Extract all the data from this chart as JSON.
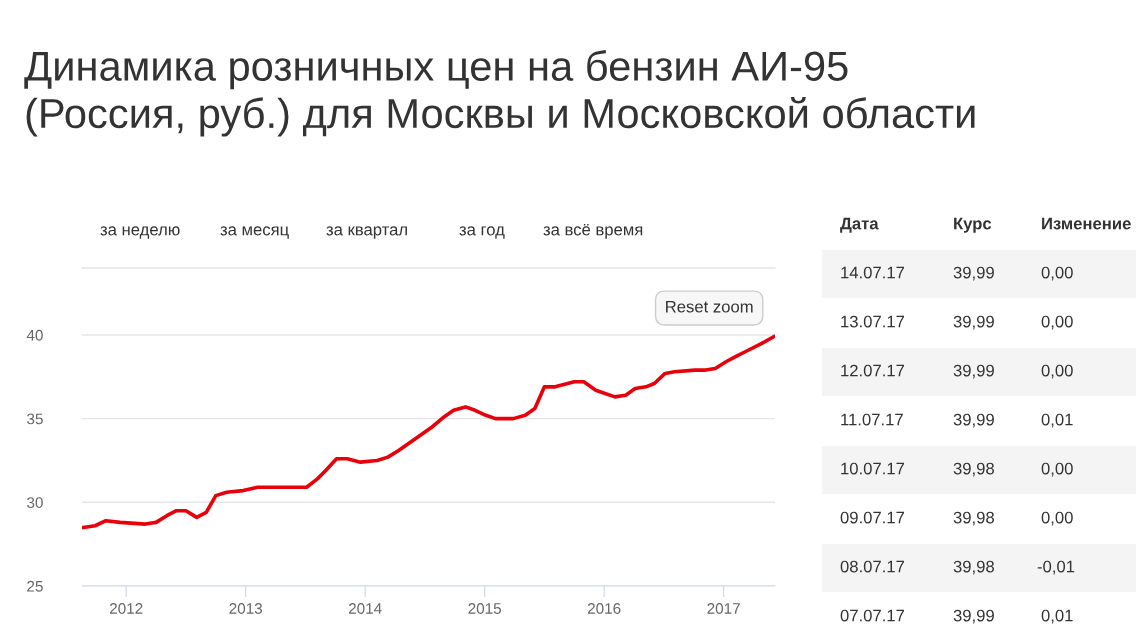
{
  "chart_data": [
    {
      "type": "line",
      "title": "Динамика розничных цен на бензин АИ-95\n(Россия, руб.) для Москвы и Московской области",
      "annotations": [
        "за неделю",
        "за месяц",
        "за квартал",
        "за год",
        "за всё время",
        "Reset zoom"
      ],
      "x": [
        2011.64,
        2011.74,
        2011.83,
        2011.95,
        2012.16,
        2012.25,
        2012.34,
        2012.42,
        2012.5,
        2012.59,
        2012.67,
        2012.75,
        2012.84,
        2012.98,
        2013.1,
        2013.18,
        2013.35,
        2013.43,
        2013.51,
        2013.6,
        2013.67,
        2013.76,
        2013.85,
        2013.96,
        2014.1,
        2014.19,
        2014.28,
        2014.42,
        2014.56,
        2014.66,
        2014.74,
        2014.84,
        2014.92,
        2015.01,
        2015.09,
        2015.24,
        2015.34,
        2015.42,
        2015.5,
        2015.59,
        2015.75,
        2015.83,
        2015.93,
        2016.09,
        2016.18,
        2016.26,
        2016.35,
        2016.42,
        2016.51,
        2016.59,
        2016.76,
        2016.85,
        2016.93,
        2017.02,
        2017.1,
        2017.21,
        2017.32,
        2017.42
      ],
      "series": [
        {
          "color": "#e8000b",
          "values": [
            28.5,
            28.6,
            28.9,
            28.8,
            28.7,
            28.8,
            29.2,
            29.5,
            29.5,
            29.1,
            29.4,
            30.4,
            30.6,
            30.7,
            30.9,
            30.9,
            30.9,
            30.9,
            30.9,
            31.4,
            31.9,
            32.6,
            32.6,
            32.4,
            32.5,
            32.7,
            33.1,
            33.8,
            34.5,
            35.1,
            35.5,
            35.7,
            35.5,
            35.2,
            35.0,
            35.0,
            35.2,
            35.6,
            36.9,
            36.9,
            37.2,
            37.2,
            36.7,
            36.3,
            36.4,
            36.8,
            36.9,
            37.1,
            37.7,
            37.8,
            37.9,
            37.9,
            38.0,
            38.4,
            38.7,
            39.1,
            39.5,
            39.9
          ]
        }
      ],
      "xlim": [
        2011.63,
        2017.43
      ],
      "xticks": [
        2012,
        2013,
        2014,
        2015,
        2016,
        2017
      ],
      "ylim": [
        25,
        44
      ],
      "yticks": [
        25,
        30,
        35,
        40
      ],
      "grid": "y",
      "marker": "none",
      "line_style": "solid"
    },
    {
      "type": "other",
      "categories": [
        "Дата",
        "Курс",
        "Изменение"
      ],
      "annotations": [
        "14.07.17",
        "39,99",
        "0,00",
        "13.07.17",
        "39,99",
        "0,00",
        "12.07.17",
        "39,99",
        "0,00",
        "11.07.17",
        "39,99",
        "0,01",
        "10.07.17",
        "39,98",
        "0,00",
        "09.07.17",
        "39,98",
        "0,00",
        "08.07.17",
        "39,98",
        "-0,01",
        "07.07.17",
        "39,99",
        "0,01"
      ]
    }
  ]
}
